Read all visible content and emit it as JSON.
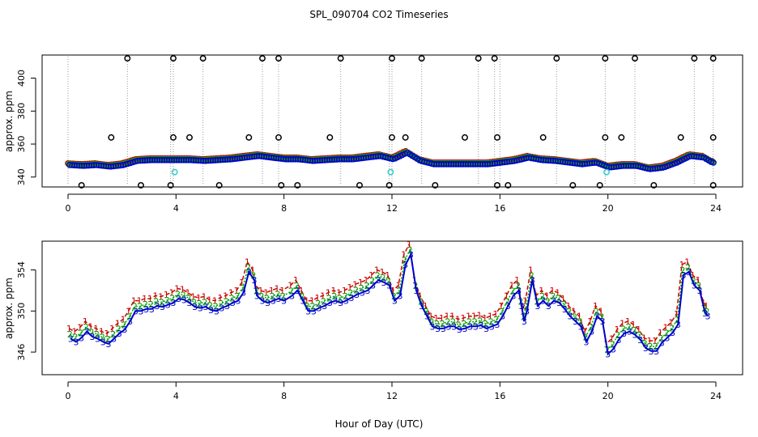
{
  "title": "SPL_090704  CO2 Timeseries",
  "xlabel": "Hour of Day (UTC)",
  "chart_data": [
    {
      "type": "scatter",
      "name": "top-panel",
      "ylabel": "approx. ppm",
      "xlim": [
        0,
        24
      ],
      "ylim": [
        334,
        414
      ],
      "xticks": [
        0,
        4,
        8,
        12,
        16,
        20,
        24
      ],
      "yticks": [
        340,
        360,
        380,
        400
      ],
      "colors": {
        "s1": "#cc0000",
        "s2": "#00aa00",
        "s3": "#0000cc",
        "flag": "#000000",
        "cal": "#33cccc",
        "spike": "#999999"
      },
      "base": [
        [
          0,
          347.5
        ],
        [
          0.5,
          347
        ],
        [
          1,
          347.5
        ],
        [
          1.5,
          346.5
        ],
        [
          2,
          347.5
        ],
        [
          2.5,
          350
        ],
        [
          3,
          350.5
        ],
        [
          3.5,
          350.5
        ],
        [
          4,
          350.5
        ],
        [
          4.5,
          350.5
        ],
        [
          5,
          350
        ],
        [
          5.5,
          350.5
        ],
        [
          6,
          351
        ],
        [
          6.5,
          352
        ],
        [
          7,
          353
        ],
        [
          7.5,
          352
        ],
        [
          8,
          351
        ],
        [
          8.5,
          351
        ],
        [
          9,
          350
        ],
        [
          9.5,
          350.5
        ],
        [
          10,
          351
        ],
        [
          10.5,
          351
        ],
        [
          11,
          352
        ],
        [
          11.5,
          353
        ],
        [
          12,
          351
        ],
        [
          12.5,
          355
        ],
        [
          13,
          350
        ],
        [
          13.5,
          348
        ],
        [
          14,
          348
        ],
        [
          14.5,
          348
        ],
        [
          15,
          348
        ],
        [
          15.5,
          348
        ],
        [
          16,
          349
        ],
        [
          16.5,
          350
        ],
        [
          17,
          352
        ],
        [
          17.5,
          350.5
        ],
        [
          18,
          350
        ],
        [
          18.5,
          349
        ],
        [
          19,
          348
        ],
        [
          19.5,
          349
        ],
        [
          20,
          346
        ],
        [
          20.5,
          347
        ],
        [
          21,
          347
        ],
        [
          21.5,
          345
        ],
        [
          22,
          346
        ],
        [
          22.5,
          349
        ],
        [
          23,
          353
        ],
        [
          23.5,
          352
        ],
        [
          23.8,
          349
        ]
      ],
      "flag_high": [
        2.2,
        3.9,
        5.0,
        7.2,
        7.8,
        10.1,
        12.0,
        13.1,
        15.2,
        15.8,
        18.1,
        19.9,
        21.0,
        23.2,
        23.9
      ],
      "flag_mid": [
        1.6,
        3.9,
        4.5,
        6.7,
        7.8,
        9.7,
        12.0,
        12.5,
        14.7,
        15.9,
        17.6,
        19.9,
        20.5,
        22.7,
        23.9
      ],
      "flag_low": [
        0.5,
        2.7,
        3.8,
        5.6,
        7.9,
        8.5,
        10.8,
        11.9,
        13.6,
        15.9,
        16.3,
        18.7,
        19.7,
        21.7,
        23.9
      ],
      "cal": [
        3.95,
        11.95,
        19.95
      ],
      "cal_value": 343,
      "spikes": [
        0.0,
        2.2,
        3.8,
        3.9,
        5.0,
        7.2,
        7.8,
        10.1,
        11.9,
        12.0,
        13.1,
        15.2,
        15.8,
        16.0,
        18.1,
        19.9,
        21.0,
        23.2,
        23.9
      ]
    },
    {
      "type": "line",
      "name": "bottom-panel",
      "ylabel": "approx. ppm",
      "xlim": [
        0,
        24
      ],
      "ylim": [
        343.8,
        356.8
      ],
      "xticks": [
        0,
        4,
        8,
        12,
        16,
        20,
        24
      ],
      "yticks": [
        346,
        350,
        354
      ],
      "series": [
        {
          "name": "1",
          "marker": "1",
          "color": "#cc0000",
          "dash": "5,3"
        },
        {
          "name": "2",
          "marker": "2",
          "color": "#00aa00",
          "dash": "2,2"
        },
        {
          "name": "3",
          "marker": "3",
          "color": "#0000cc",
          "dash": ""
        }
      ],
      "points": [
        [
          0.1,
          347.3
        ],
        [
          0.3,
          347.0
        ],
        [
          0.5,
          347.4
        ],
        [
          0.7,
          348.0
        ],
        [
          0.9,
          347.5
        ],
        [
          1.1,
          347.3
        ],
        [
          1.3,
          347.0
        ],
        [
          1.5,
          346.8
        ],
        [
          1.7,
          347.3
        ],
        [
          1.9,
          347.8
        ],
        [
          2.1,
          348.2
        ],
        [
          2.3,
          349.0
        ],
        [
          2.5,
          350.0
        ],
        [
          2.7,
          350.0
        ],
        [
          2.9,
          350.2
        ],
        [
          3.1,
          350.2
        ],
        [
          3.3,
          350.5
        ],
        [
          3.5,
          350.4
        ],
        [
          3.7,
          350.6
        ],
        [
          3.9,
          350.8
        ],
        [
          4.1,
          351.2
        ],
        [
          4.3,
          351.1
        ],
        [
          4.5,
          350.8
        ],
        [
          4.7,
          350.4
        ],
        [
          4.9,
          350.3
        ],
        [
          5.1,
          350.4
        ],
        [
          5.3,
          350.1
        ],
        [
          5.5,
          350.0
        ],
        [
          5.7,
          350.3
        ],
        [
          5.9,
          350.5
        ],
        [
          6.1,
          350.8
        ],
        [
          6.3,
          351.0
        ],
        [
          6.5,
          351.8
        ],
        [
          6.7,
          353.8
        ],
        [
          6.9,
          353.0
        ],
        [
          7.0,
          351.5
        ],
        [
          7.2,
          351.0
        ],
        [
          7.4,
          350.8
        ],
        [
          7.6,
          351.0
        ],
        [
          7.8,
          351.2
        ],
        [
          8.0,
          351.0
        ],
        [
          8.3,
          351.5
        ],
        [
          8.5,
          352.0
        ],
        [
          8.7,
          351.0
        ],
        [
          8.9,
          350.0
        ],
        [
          9.1,
          350.0
        ],
        [
          9.3,
          350.3
        ],
        [
          9.5,
          350.5
        ],
        [
          9.7,
          350.8
        ],
        [
          9.9,
          351.0
        ],
        [
          10.1,
          350.8
        ],
        [
          10.3,
          351.0
        ],
        [
          10.5,
          351.3
        ],
        [
          10.7,
          351.6
        ],
        [
          10.9,
          351.8
        ],
        [
          11.1,
          352.0
        ],
        [
          11.3,
          352.5
        ],
        [
          11.5,
          353.0
        ],
        [
          11.7,
          352.8
        ],
        [
          11.9,
          352.5
        ],
        [
          12.1,
          351.0
        ],
        [
          12.3,
          351.5
        ],
        [
          12.5,
          354.5
        ],
        [
          12.7,
          355.5
        ],
        [
          12.9,
          352.0
        ],
        [
          13.1,
          350.5
        ],
        [
          13.3,
          349.5
        ],
        [
          13.5,
          348.5
        ],
        [
          13.7,
          348.3
        ],
        [
          13.9,
          348.3
        ],
        [
          14.1,
          348.5
        ],
        [
          14.3,
          348.5
        ],
        [
          14.5,
          348.2
        ],
        [
          14.7,
          348.3
        ],
        [
          14.9,
          348.5
        ],
        [
          15.1,
          348.5
        ],
        [
          15.3,
          348.6
        ],
        [
          15.5,
          348.3
        ],
        [
          15.7,
          348.5
        ],
        [
          15.9,
          348.7
        ],
        [
          16.1,
          349.5
        ],
        [
          16.3,
          350.5
        ],
        [
          16.5,
          351.5
        ],
        [
          16.7,
          352.0
        ],
        [
          16.8,
          350.5
        ],
        [
          16.9,
          349.0
        ],
        [
          17.0,
          350.0
        ],
        [
          17.2,
          353.0
        ],
        [
          17.4,
          350.5
        ],
        [
          17.6,
          351.0
        ],
        [
          17.8,
          350.5
        ],
        [
          18.0,
          351.0
        ],
        [
          18.2,
          350.8
        ],
        [
          18.4,
          350.2
        ],
        [
          18.6,
          349.5
        ],
        [
          18.8,
          349.0
        ],
        [
          19.0,
          348.5
        ],
        [
          19.2,
          347.0
        ],
        [
          19.4,
          348.0
        ],
        [
          19.6,
          349.5
        ],
        [
          19.8,
          349.0
        ],
        [
          20.0,
          345.8
        ],
        [
          20.2,
          346.3
        ],
        [
          20.4,
          347.2
        ],
        [
          20.6,
          347.8
        ],
        [
          20.8,
          348.0
        ],
        [
          21.0,
          347.7
        ],
        [
          21.2,
          347.2
        ],
        [
          21.4,
          346.4
        ],
        [
          21.6,
          346.1
        ],
        [
          21.8,
          346.1
        ],
        [
          22.0,
          346.9
        ],
        [
          22.2,
          347.4
        ],
        [
          22.4,
          347.9
        ],
        [
          22.6,
          348.7
        ],
        [
          22.8,
          353.5
        ],
        [
          23.0,
          353.8
        ],
        [
          23.2,
          352.5
        ],
        [
          23.4,
          352.0
        ],
        [
          23.6,
          349.8
        ],
        [
          23.7,
          349.5
        ]
      ]
    }
  ]
}
